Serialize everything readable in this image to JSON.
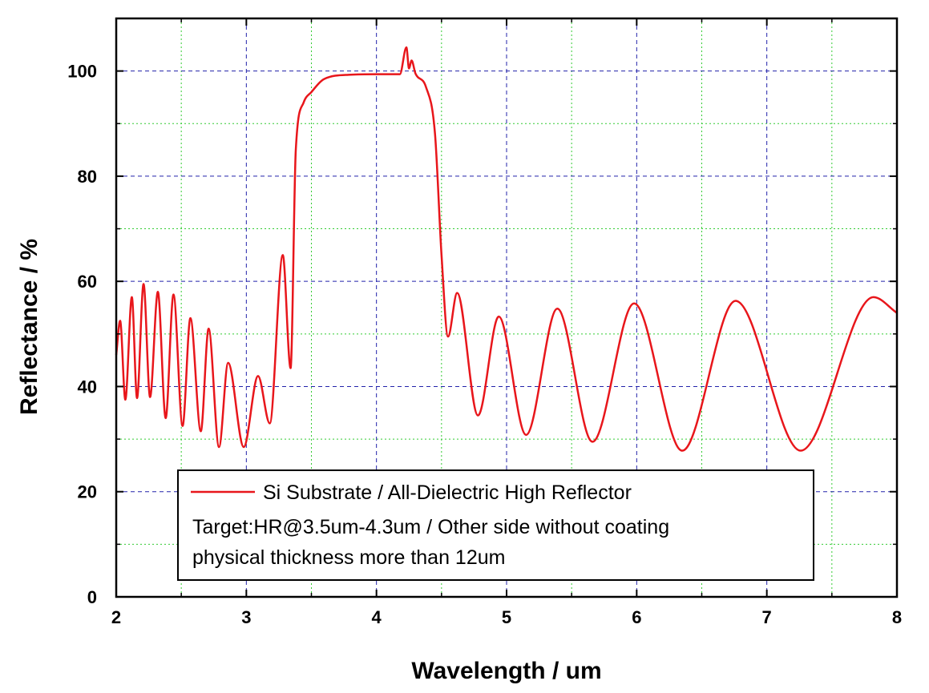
{
  "chart_data": {
    "type": "line",
    "title": "",
    "xlabel": "Wavelength / um",
    "ylabel": "Reflectance / %",
    "xlim": [
      2,
      8
    ],
    "ylim": [
      0,
      110
    ],
    "x_ticks": [
      2,
      3,
      4,
      5,
      6,
      7,
      8
    ],
    "x_tick_labels": [
      "2",
      "3",
      "4",
      "5",
      "6",
      "7",
      "8"
    ],
    "y_ticks": [
      0,
      20,
      40,
      60,
      80,
      100
    ],
    "y_tick_labels": [
      "0",
      "20",
      "40",
      "60",
      "80",
      "100"
    ],
    "grid": {
      "major": true,
      "minor": true,
      "major_color": "#2222aa",
      "minor_color": "#33cc33"
    },
    "legend": {
      "placement": "bottom-center",
      "lines": [
        "Si Substrate / All-Dielectric High Reflector",
        "Target:HR@3.5um-4.3um / Other side without coating",
        "physical thickness more than 12um"
      ]
    },
    "series": [
      {
        "name": "Si Substrate / All-Dielectric High Reflector",
        "color": "#e8161b",
        "points": [
          [
            2.0,
            46
          ],
          [
            2.03,
            52.5
          ],
          [
            2.07,
            37.5
          ],
          [
            2.12,
            57
          ],
          [
            2.16,
            37.8
          ],
          [
            2.21,
            59.5
          ],
          [
            2.26,
            38
          ],
          [
            2.32,
            58
          ],
          [
            2.38,
            34
          ],
          [
            2.44,
            57.5
          ],
          [
            2.51,
            32.5
          ],
          [
            2.57,
            53
          ],
          [
            2.65,
            31.5
          ],
          [
            2.71,
            51
          ],
          [
            2.79,
            28.5
          ],
          [
            2.86,
            44.5
          ],
          [
            2.98,
            28.5
          ],
          [
            3.09,
            42
          ],
          [
            3.18,
            33
          ],
          [
            3.28,
            65
          ],
          [
            3.34,
            43.5
          ],
          [
            3.38,
            85
          ],
          [
            3.44,
            94
          ],
          [
            3.5,
            96
          ],
          [
            3.6,
            98.5
          ],
          [
            3.8,
            99.3
          ],
          [
            4.0,
            99.4
          ],
          [
            4.18,
            99.4
          ],
          [
            4.23,
            104.5
          ],
          [
            4.25,
            100.5
          ],
          [
            4.27,
            102
          ],
          [
            4.3,
            99.5
          ],
          [
            4.38,
            97
          ],
          [
            4.45,
            88
          ],
          [
            4.5,
            65
          ],
          [
            4.55,
            49.5
          ],
          [
            4.62,
            57.8
          ],
          [
            4.78,
            34.5
          ],
          [
            4.94,
            53.3
          ],
          [
            5.15,
            30.8
          ],
          [
            5.39,
            54.8
          ],
          [
            5.66,
            29.5
          ],
          [
            5.98,
            55.8
          ],
          [
            6.35,
            27.8
          ],
          [
            6.76,
            56.3
          ],
          [
            7.26,
            27.8
          ],
          [
            7.82,
            57
          ],
          [
            8.0,
            54
          ]
        ]
      }
    ]
  }
}
